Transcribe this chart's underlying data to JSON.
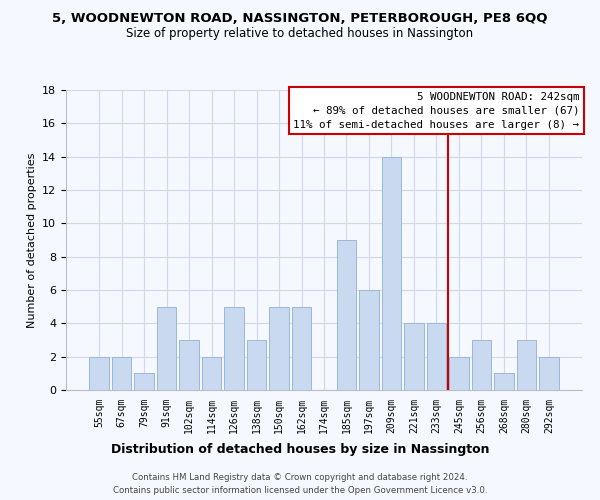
{
  "title": "5, WOODNEWTON ROAD, NASSINGTON, PETERBOROUGH, PE8 6QQ",
  "subtitle": "Size of property relative to detached houses in Nassington",
  "xlabel": "Distribution of detached houses by size in Nassington",
  "ylabel": "Number of detached properties",
  "bar_labels": [
    "55sqm",
    "67sqm",
    "79sqm",
    "91sqm",
    "102sqm",
    "114sqm",
    "126sqm",
    "138sqm",
    "150sqm",
    "162sqm",
    "174sqm",
    "185sqm",
    "197sqm",
    "209sqm",
    "221sqm",
    "233sqm",
    "245sqm",
    "256sqm",
    "268sqm",
    "280sqm",
    "292sqm"
  ],
  "bar_heights": [
    2,
    2,
    1,
    5,
    3,
    2,
    5,
    3,
    5,
    5,
    0,
    9,
    6,
    14,
    4,
    4,
    2,
    3,
    1,
    3,
    2
  ],
  "bar_color": "#c9d9f0",
  "bar_edge_color": "#9ab8d8",
  "vline_color": "#cc0000",
  "ylim": [
    0,
    18
  ],
  "yticks": [
    0,
    2,
    4,
    6,
    8,
    10,
    12,
    14,
    16,
    18
  ],
  "annotation_title": "5 WOODNEWTON ROAD: 242sqm",
  "annotation_line1": "← 89% of detached houses are smaller (67)",
  "annotation_line2": "11% of semi-detached houses are larger (8) →",
  "footer_line1": "Contains HM Land Registry data © Crown copyright and database right 2024.",
  "footer_line2": "Contains public sector information licensed under the Open Government Licence v3.0.",
  "bg_color": "#f5f8fe",
  "grid_color": "#d0d8ea",
  "vline_x_index": 16
}
